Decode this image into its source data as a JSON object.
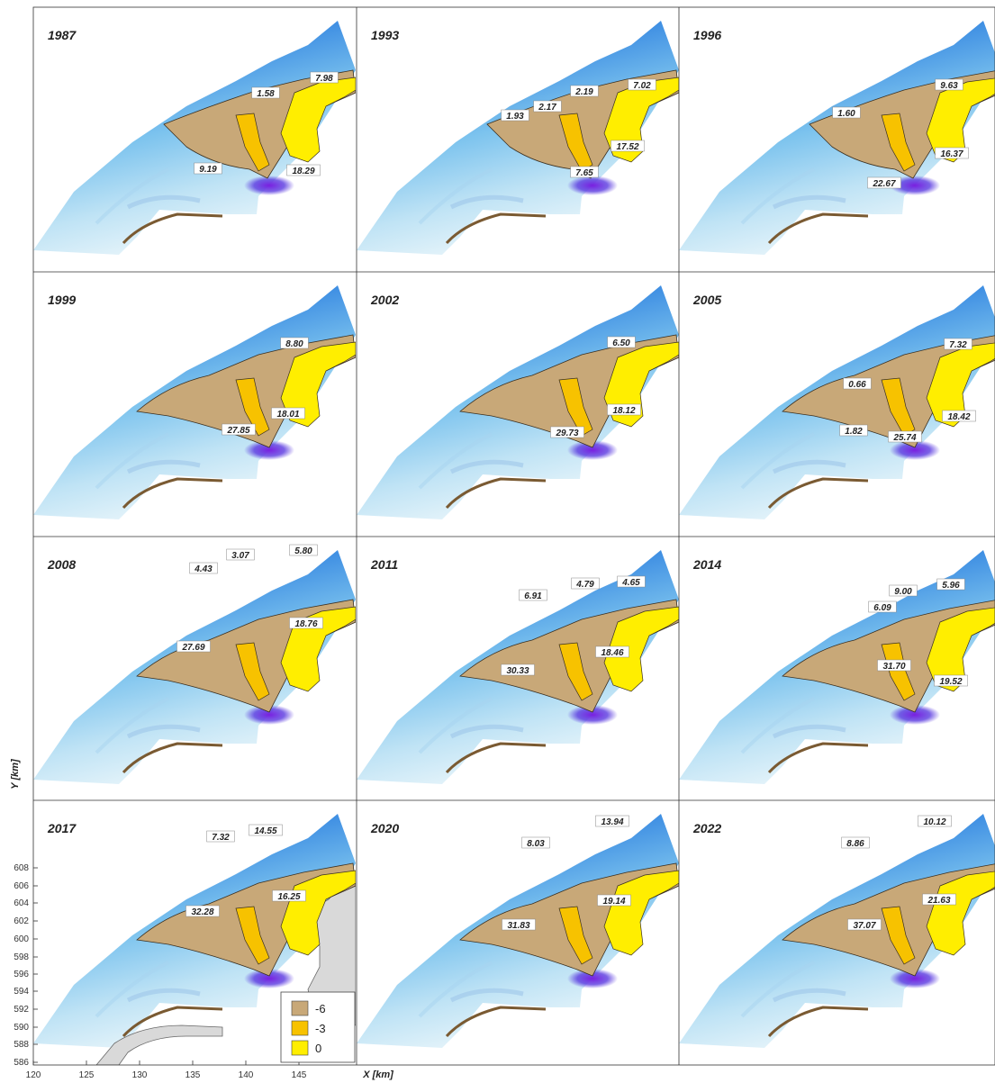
{
  "x_axis": {
    "title": "X [km]",
    "ticks": [
      "120",
      "125",
      "130",
      "135",
      "140",
      "145"
    ]
  },
  "y_axis": {
    "title": "Y [km]",
    "ticks": [
      "586",
      "588",
      "590",
      "592",
      "594",
      "596",
      "598",
      "600",
      "602",
      "604",
      "606",
      "608"
    ]
  },
  "legend": [
    {
      "label": "-6",
      "color": "#c8a878"
    },
    {
      "label": "-3",
      "color": "#f7c200"
    },
    {
      "label": "0",
      "color": "#ffee00"
    }
  ],
  "colors": {
    "water_deep": "#3d5fe0",
    "water_shallow": "#d4ecf7",
    "channel": "#7f28e0",
    "land": "#d9d9d9",
    "beach": "#7a5a32"
  },
  "panels": [
    {
      "year": "1987",
      "labels": [
        "7.98",
        "1.58",
        "18.29",
        "9.19"
      ]
    },
    {
      "year": "1993",
      "labels": [
        "7.02",
        "2.19",
        "2.17",
        "1.93",
        "17.52",
        "7.65"
      ]
    },
    {
      "year": "1996",
      "labels": [
        "9.63",
        "1.60",
        "16.37",
        "22.67"
      ]
    },
    {
      "year": "1999",
      "labels": [
        "8.80",
        "18.01",
        "27.85"
      ]
    },
    {
      "year": "2002",
      "labels": [
        "6.50",
        "18.12",
        "29.73"
      ]
    },
    {
      "year": "2005",
      "labels": [
        "7.32",
        "0.66",
        "18.42",
        "1.82",
        "25.74"
      ]
    },
    {
      "year": "2008",
      "labels": [
        "3.07",
        "5.80",
        "4.43",
        "18.76",
        "27.69"
      ]
    },
    {
      "year": "2011",
      "labels": [
        "4.79",
        "4.65",
        "6.91",
        "18.46",
        "30.33"
      ]
    },
    {
      "year": "2014",
      "labels": [
        "5.96",
        "9.00",
        "6.09",
        "31.70",
        "19.52"
      ]
    },
    {
      "year": "2017",
      "labels": [
        "14.55",
        "7.32",
        "16.25",
        "32.28"
      ]
    },
    {
      "year": "2020",
      "labels": [
        "13.94",
        "8.03",
        "19.14",
        "31.83"
      ]
    },
    {
      "year": "2022",
      "labels": [
        "10.12",
        "8.86",
        "21.63",
        "37.07"
      ]
    }
  ]
}
